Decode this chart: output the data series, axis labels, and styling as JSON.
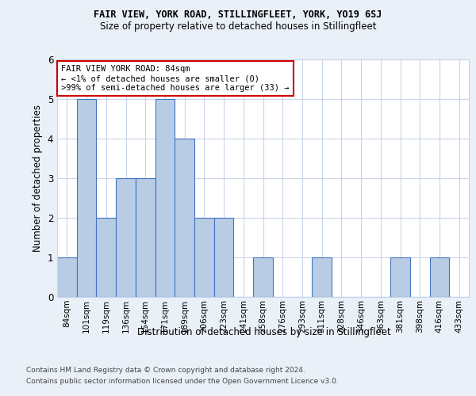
{
  "title": "FAIR VIEW, YORK ROAD, STILLINGFLEET, YORK, YO19 6SJ",
  "subtitle": "Size of property relative to detached houses in Stillingfleet",
  "xlabel": "Distribution of detached houses by size in Stillingfleet",
  "ylabel": "Number of detached properties",
  "categories": [
    "84sqm",
    "101sqm",
    "119sqm",
    "136sqm",
    "154sqm",
    "171sqm",
    "189sqm",
    "206sqm",
    "223sqm",
    "241sqm",
    "258sqm",
    "276sqm",
    "293sqm",
    "311sqm",
    "328sqm",
    "346sqm",
    "363sqm",
    "381sqm",
    "398sqm",
    "416sqm",
    "433sqm"
  ],
  "values": [
    1,
    5,
    2,
    3,
    3,
    5,
    4,
    2,
    2,
    0,
    1,
    0,
    0,
    1,
    0,
    0,
    0,
    1,
    0,
    1,
    0
  ],
  "highlight_index": 0,
  "bar_color_normal": "#b8cce4",
  "bar_edge_color": "#4472c4",
  "annotation_box_text": "FAIR VIEW YORK ROAD: 84sqm\n← <1% of detached houses are smaller (0)\n>99% of semi-detached houses are larger (33) →",
  "annotation_box_edgecolor": "#cc0000",
  "annotation_box_bg": "#ffffff",
  "ylim": [
    0,
    6
  ],
  "yticks": [
    0,
    1,
    2,
    3,
    4,
    5,
    6
  ],
  "footnote1": "Contains HM Land Registry data © Crown copyright and database right 2024.",
  "footnote2": "Contains public sector information licensed under the Open Government Licence v3.0.",
  "background_color": "#eaf0f8",
  "plot_bg_color": "#ffffff",
  "grid_color": "#c8d4e8"
}
